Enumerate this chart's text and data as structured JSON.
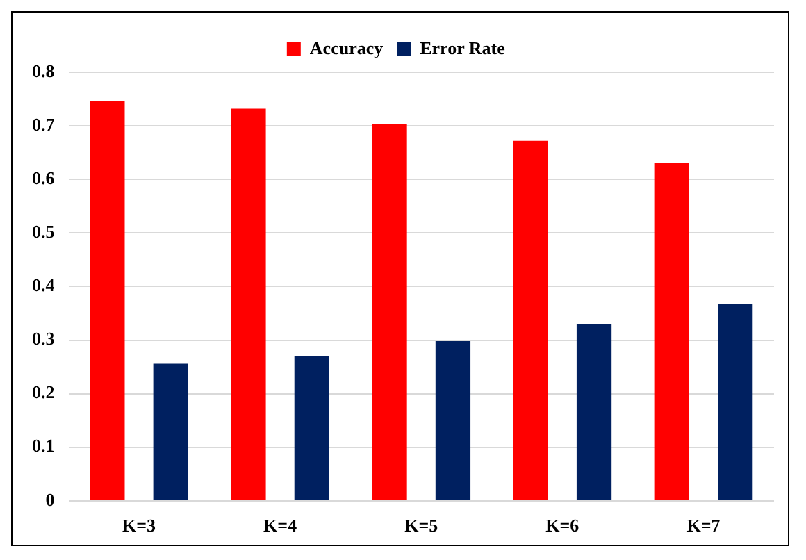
{
  "chart_data": {
    "type": "bar",
    "categories": [
      "K=3",
      "K=4",
      "K=5",
      "K=6",
      "K=7"
    ],
    "series": [
      {
        "name": "Accuracy",
        "color": "#ff0000",
        "values": [
          0.746,
          0.732,
          0.703,
          0.672,
          0.631
        ]
      },
      {
        "name": "Error Rate",
        "color": "#002060",
        "values": [
          0.256,
          0.27,
          0.298,
          0.33,
          0.368
        ]
      }
    ],
    "ylim": [
      0,
      0.8
    ],
    "yticks": [
      0,
      0.1,
      0.2,
      0.3,
      0.4,
      0.5,
      0.6,
      0.7,
      0.8
    ],
    "grid": "y",
    "legend": "top"
  }
}
